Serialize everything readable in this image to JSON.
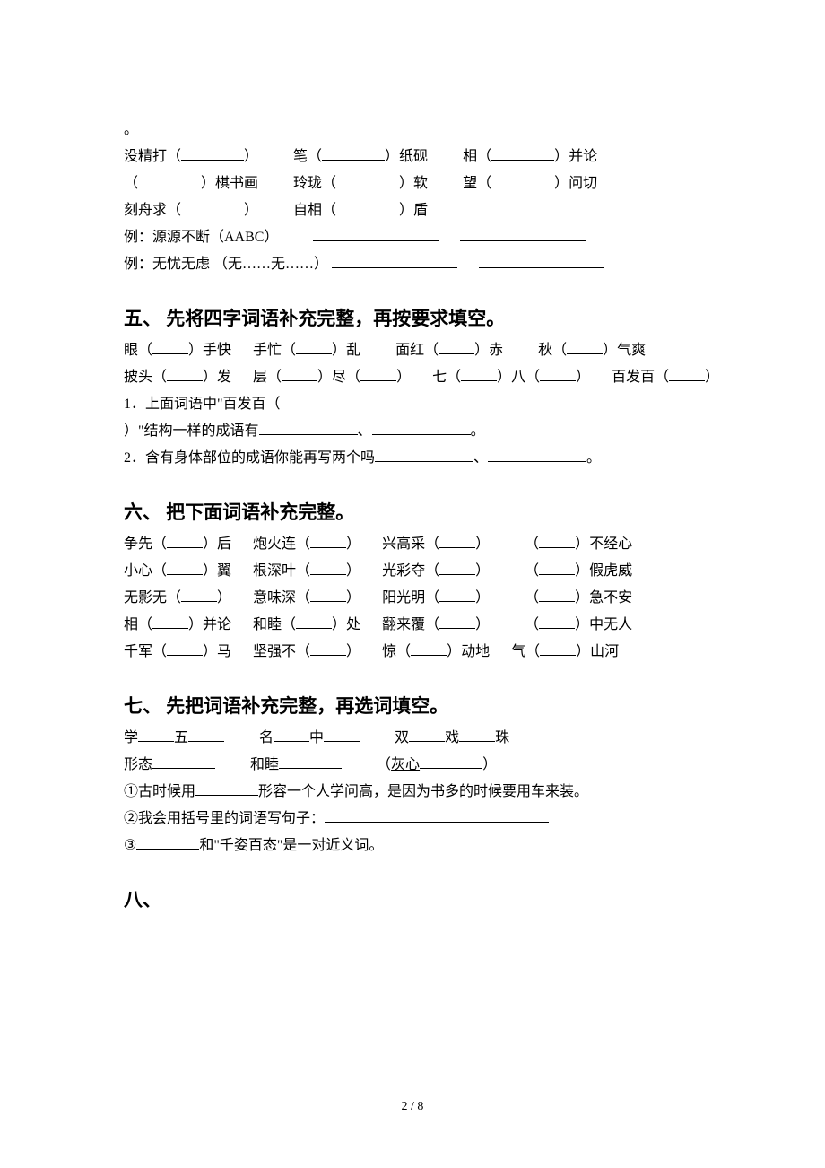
{
  "sec4": {
    "l0": "。",
    "l1a": "没精打（",
    "l1b": "）",
    "l1c": "笔（",
    "l1d": "）纸砚",
    "l1e": "相（",
    "l1f": "）并论",
    "l2a": "（",
    "l2b": "）棋书画",
    "l2c": "玲珑（",
    "l2d": "）软",
    "l2e": "望（",
    "l2f": "）问切",
    "l3a": "刻舟求（",
    "l3b": "）",
    "l3c": "自相（",
    "l3d": "）盾",
    "l4a": "例：源源不断（AABC）",
    "l5a": "例：无忧无虑 （无……无……）"
  },
  "sec5": {
    "heading": "五、 先将四字词语补充完整，再按要求填空。",
    "l1a": "眼（",
    "l1b": "）手快",
    "l1c": "手忙（",
    "l1d": "）乱",
    "l1e": "面红（",
    "l1f": "）赤",
    "l1g": "秋（",
    "l1h": "）气爽",
    "l2a": "披头（",
    "l2b": "）发",
    "l2c": "层（",
    "l2d": "）尽（",
    "l2e": "）",
    "l2f": "七（",
    "l2g": "）八（",
    "l2h": "）",
    "l2i": "百发百（",
    "l2j": "）",
    "l3": "1．上面词语中\"百发百（",
    "l4a": "）\"结构一样的成语有",
    "l4b": "、",
    "l4c": "。",
    "l5a": "2．含有身体部位的成语你能再写两个吗",
    "l5b": "、",
    "l5c": "。"
  },
  "sec6": {
    "heading": "六、 把下面词语补充完整。",
    "l1a": "争先（",
    "l1b": "）后",
    "l1c": "炮火连（",
    "l1d": "）",
    "l1e": "兴高采（",
    "l1f": "）",
    "l1g": "（",
    "l1h": "）不经心",
    "l2a": "小心（",
    "l2b": "）翼",
    "l2c": "根深叶（",
    "l2d": "）",
    "l2e": "光彩夺（",
    "l2f": "）",
    "l2g": "（",
    "l2h": "）假虎威",
    "l3a": "无影无（",
    "l3b": "）",
    "l3c": "意味深（",
    "l3d": "）",
    "l3e": "阳光明（",
    "l3f": "）",
    "l3g": "（",
    "l3h": "）急不安",
    "l4a": "相（",
    "l4b": "）并论",
    "l4c": "和睦（",
    "l4d": "）处",
    "l4e": "翻来覆（",
    "l4f": "）",
    "l4g": "（",
    "l4h": "）中无人",
    "l5a": "千军（",
    "l5b": "）马",
    "l5c": "坚强不（",
    "l5d": "）",
    "l5e": "惊（",
    "l5f": "）动地",
    "l5g": "气（",
    "l5h": "）山河"
  },
  "sec7": {
    "heading": "七、 先把词语补充完整，再选词填空。",
    "l1a": "学",
    "l1b": "五",
    "l1c": "名",
    "l1d": "中",
    "l1e": "双",
    "l1f": "戏",
    "l1g": "珠",
    "l2a": "形态",
    "l2b": "和睦",
    "l2c": "（",
    "l2d": "灰心",
    "l2e": "）",
    "l3a": "①古时候用",
    "l3b": "形容一个人学问高，是因为书多的时候要用车来装。",
    "l4a": "②我会用括号里的词语写句子：",
    "l5a": "③",
    "l5b": "和\"千姿百态\"是一对近义词。"
  },
  "sec8": {
    "heading": "八、"
  },
  "footer": "2 / 8"
}
